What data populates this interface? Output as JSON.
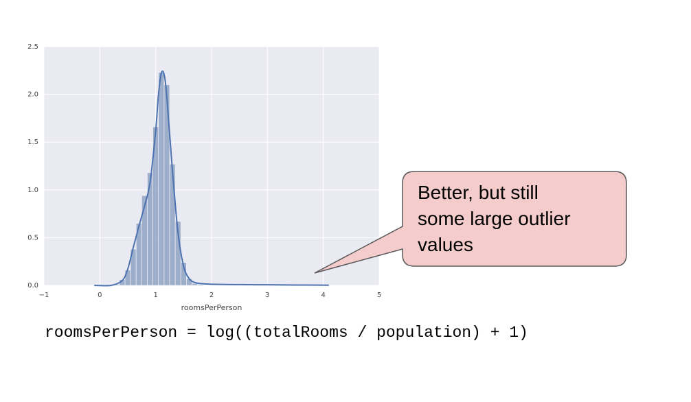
{
  "chart_data": {
    "type": "bar",
    "xlabel": "roomsPerPerson",
    "ylabel": "",
    "xlim": [
      -1,
      5
    ],
    "ylim": [
      0,
      2.5
    ],
    "xticks": [
      "−1",
      "0",
      "1",
      "2",
      "3",
      "4",
      "5"
    ],
    "yticks": [
      "0.0",
      "0.5",
      "1.0",
      "1.5",
      "2.0",
      "2.5"
    ],
    "grid": true,
    "bin_width": 0.1,
    "bins": [
      {
        "x": 0.3,
        "y": 0.01
      },
      {
        "x": 0.4,
        "y": 0.06
      },
      {
        "x": 0.5,
        "y": 0.16
      },
      {
        "x": 0.6,
        "y": 0.38
      },
      {
        "x": 0.7,
        "y": 0.65
      },
      {
        "x": 0.8,
        "y": 0.94
      },
      {
        "x": 0.9,
        "y": 1.18
      },
      {
        "x": 1.0,
        "y": 1.66
      },
      {
        "x": 1.1,
        "y": 2.23
      },
      {
        "x": 1.2,
        "y": 2.1
      },
      {
        "x": 1.3,
        "y": 1.27
      },
      {
        "x": 1.4,
        "y": 0.67
      },
      {
        "x": 1.5,
        "y": 0.24
      },
      {
        "x": 1.6,
        "y": 0.07
      },
      {
        "x": 1.7,
        "y": 0.02
      },
      {
        "x": 1.8,
        "y": 0.01
      }
    ],
    "kde": {
      "x": [
        -0.1,
        0.2,
        0.4,
        0.5,
        0.6,
        0.7,
        0.8,
        0.9,
        1.0,
        1.05,
        1.1,
        1.15,
        1.2,
        1.3,
        1.4,
        1.5,
        1.6,
        1.7,
        1.8,
        2.0,
        2.5,
        3.0,
        3.5,
        4.1
      ],
      "y": [
        0.0,
        0.0,
        0.05,
        0.17,
        0.4,
        0.62,
        0.83,
        1.08,
        1.62,
        2.0,
        2.22,
        2.21,
        1.97,
        1.2,
        0.55,
        0.2,
        0.07,
        0.03,
        0.02,
        0.012,
        0.008,
        0.006,
        0.004,
        0.002
      ]
    },
    "colors": {
      "background": "#eaeaf2",
      "grid": "#ffffff",
      "bar_fill": "#8fa3c4",
      "kde_line": "#4c72b0"
    }
  },
  "callout": {
    "lines": [
      "Better, but still",
      "some large outlier",
      "values"
    ],
    "fill": "#f4cccc",
    "border": "#595959"
  },
  "formula": "roomsPerPerson = log((totalRooms / population) + 1)"
}
